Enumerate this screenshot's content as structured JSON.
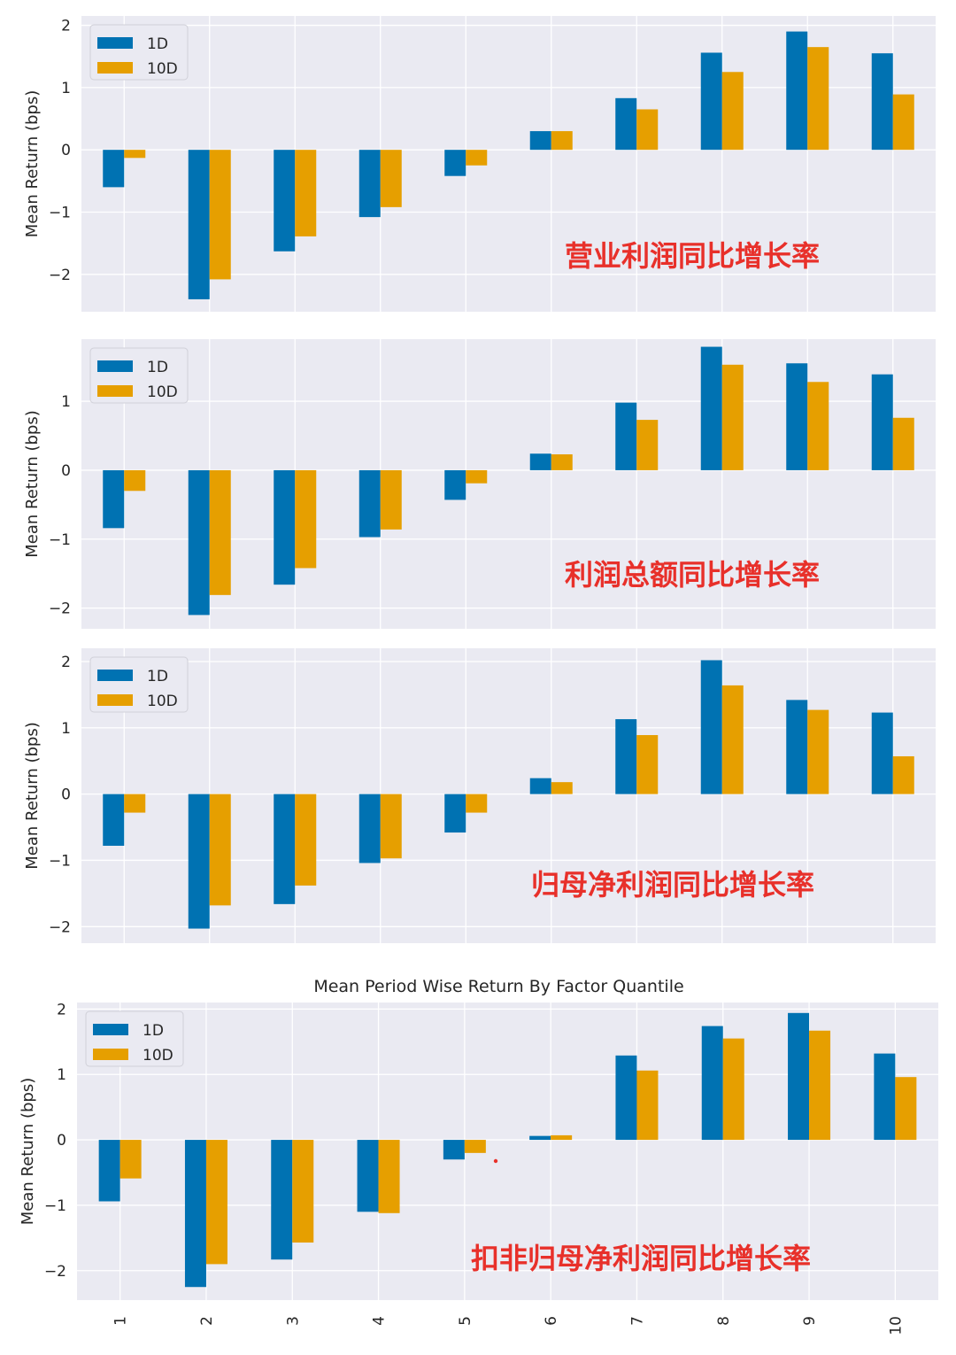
{
  "colors": {
    "series_1D": "#0072b2",
    "series_10D": "#e69f00",
    "annotation": "#e8302a",
    "plot_bg": "#eaeaf2",
    "grid": "#ffffff"
  },
  "chart_data": [
    {
      "type": "bar",
      "title": "",
      "annotation": "营业利润同比增长率",
      "ylabel": "Mean Return (bps)",
      "xlabel": "",
      "ylim": [
        -2.6,
        2.15
      ],
      "yticks": [
        2,
        1,
        0,
        -1,
        -2
      ],
      "ytick_labels": [
        "2",
        "1",
        "0",
        "−1",
        "−2"
      ],
      "categories": [
        "1",
        "2",
        "3",
        "4",
        "5",
        "6",
        "7",
        "8",
        "9",
        "10"
      ],
      "legend": [
        "1D",
        "10D"
      ],
      "legend_position": "top-left",
      "series": [
        {
          "name": "1D",
          "values": [
            -0.6,
            -2.4,
            -1.63,
            -1.08,
            -0.42,
            0.3,
            0.83,
            1.56,
            1.9,
            1.55
          ]
        },
        {
          "name": "10D",
          "values": [
            -0.13,
            -2.08,
            -1.39,
            -0.92,
            -0.25,
            0.3,
            0.65,
            1.25,
            1.65,
            0.89
          ]
        }
      ],
      "grid": true
    },
    {
      "type": "bar",
      "title": "",
      "annotation": "利润总额同比增长率",
      "ylabel": "Mean Return (bps)",
      "xlabel": "",
      "ylim": [
        -2.3,
        1.9
      ],
      "yticks": [
        1,
        0,
        -1,
        -2
      ],
      "ytick_labels": [
        "1",
        "0",
        "−1",
        "−2"
      ],
      "categories": [
        "1",
        "2",
        "3",
        "4",
        "5",
        "6",
        "7",
        "8",
        "9",
        "10"
      ],
      "legend": [
        "1D",
        "10D"
      ],
      "legend_position": "top-left",
      "series": [
        {
          "name": "1D",
          "values": [
            -0.84,
            -2.1,
            -1.66,
            -0.97,
            -0.43,
            0.24,
            0.98,
            1.79,
            1.55,
            1.39
          ]
        },
        {
          "name": "10D",
          "values": [
            -0.3,
            -1.81,
            -1.42,
            -0.86,
            -0.19,
            0.23,
            0.73,
            1.53,
            1.28,
            0.76
          ]
        }
      ],
      "grid": true
    },
    {
      "type": "bar",
      "title": "",
      "annotation": "归母净利润同比增长率",
      "ylabel": "Mean Return (bps)",
      "xlabel": "",
      "ylim": [
        -2.25,
        2.2
      ],
      "yticks": [
        2,
        1,
        0,
        -1,
        -2
      ],
      "ytick_labels": [
        "2",
        "1",
        "0",
        "−1",
        "−2"
      ],
      "categories": [
        "1",
        "2",
        "3",
        "4",
        "5",
        "6",
        "7",
        "8",
        "9",
        "10"
      ],
      "legend": [
        "1D",
        "10D"
      ],
      "legend_position": "top-left",
      "series": [
        {
          "name": "1D",
          "values": [
            -0.78,
            -2.03,
            -1.66,
            -1.04,
            -0.58,
            0.24,
            1.13,
            2.02,
            1.42,
            1.23
          ]
        },
        {
          "name": "10D",
          "values": [
            -0.28,
            -1.68,
            -1.38,
            -0.97,
            -0.28,
            0.18,
            0.89,
            1.64,
            1.27,
            0.57
          ]
        }
      ],
      "grid": true
    },
    {
      "type": "bar",
      "title": "Mean Period Wise Return By Factor Quantile",
      "annotation": "扣非归母净利润同比增长率",
      "ylabel": "Mean Return (bps)",
      "xlabel": "",
      "ylim": [
        -2.45,
        2.1
      ],
      "yticks": [
        2,
        1,
        0,
        -1,
        -2
      ],
      "ytick_labels": [
        "2",
        "1",
        "0",
        "−1",
        "−2"
      ],
      "categories": [
        "1",
        "2",
        "3",
        "4",
        "5",
        "6",
        "7",
        "8",
        "9",
        "10"
      ],
      "show_xticks": true,
      "legend": [
        "1D",
        "10D"
      ],
      "legend_position": "top-left",
      "series": [
        {
          "name": "1D",
          "values": [
            -0.94,
            -2.25,
            -1.83,
            -1.1,
            -0.3,
            0.06,
            1.29,
            1.74,
            1.94,
            1.32
          ]
        },
        {
          "name": "10D",
          "values": [
            -0.59,
            -1.9,
            -1.57,
            -1.12,
            -0.2,
            0.07,
            1.06,
            1.55,
            1.67,
            0.96
          ]
        }
      ],
      "grid": true
    }
  ]
}
